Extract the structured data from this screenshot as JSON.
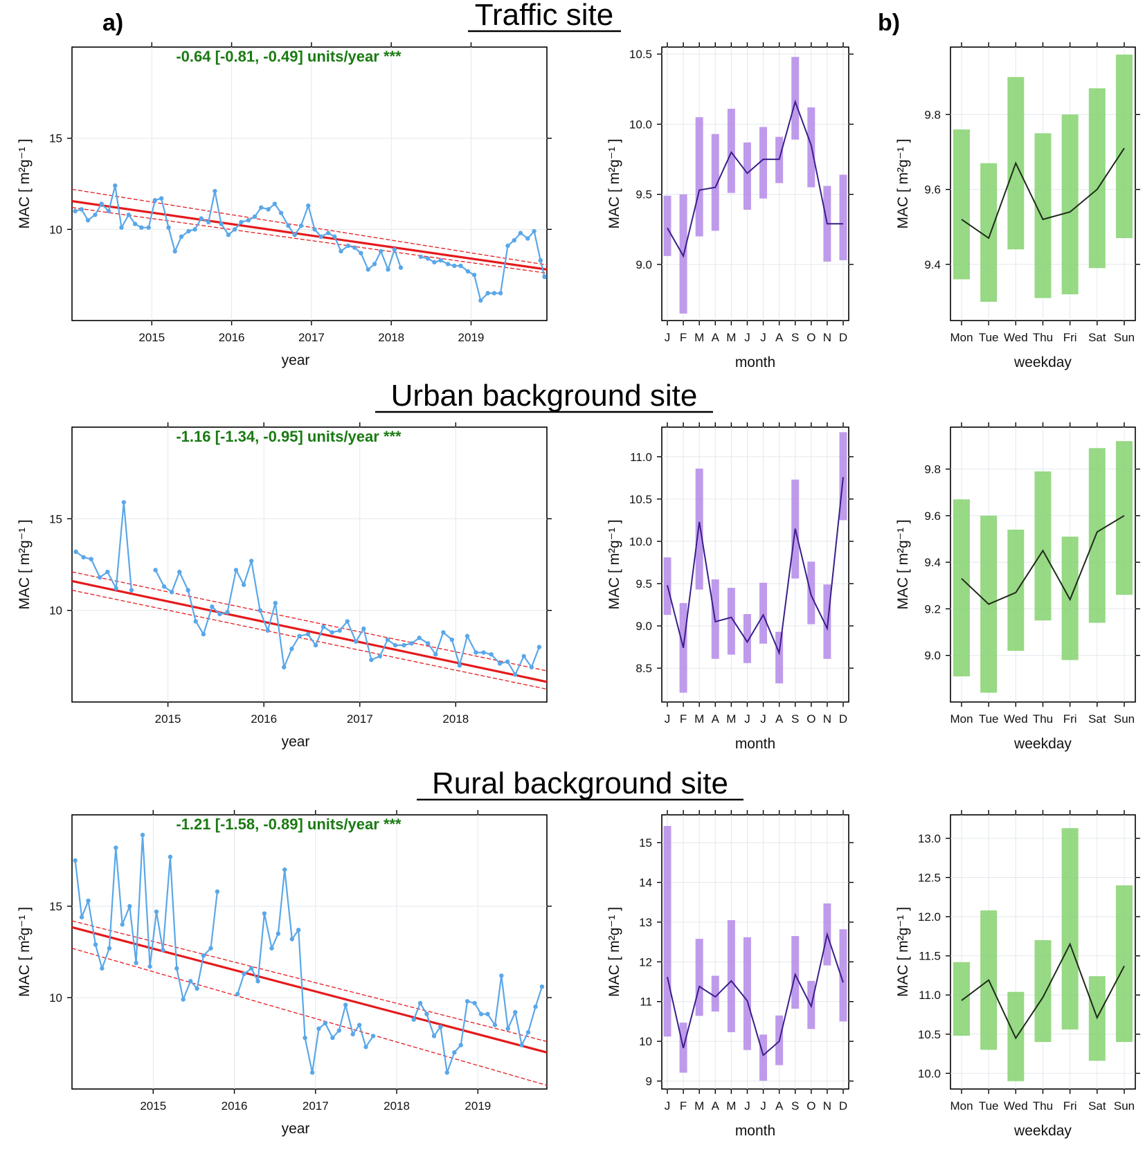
{
  "panel_labels": {
    "a": "a)",
    "b": "b)"
  },
  "site_titles": [
    "Traffic site",
    "Urban background site",
    "Rural background site"
  ],
  "colors": {
    "series": "#5aa7e8",
    "trend": "#e41a1c",
    "month_bar": "#b48ae8",
    "month_line": "#3a1e8a",
    "weekday_bar": "#85d26e",
    "weekday_line": "#1f2a1a",
    "trend_text": "#1a7a12"
  },
  "chart_data": [
    {
      "id": "traffic-year",
      "type": "line",
      "site": "Traffic site",
      "xlabel": "year",
      "ylabel": "MAC [ m²g⁻¹ ]",
      "xlim": [
        2014.0,
        2019.95
      ],
      "ylim": [
        5.0,
        20.0
      ],
      "xticks": [
        2015,
        2016,
        2017,
        2018,
        2019
      ],
      "yticks": [
        10,
        15
      ],
      "annotation": "-0.64 [-0.81, -0.49] units/year ***",
      "segments": [
        {
          "x": [
            2014.04,
            2014.12,
            2014.2,
            2014.29,
            2014.37,
            2014.46,
            2014.54,
            2014.62,
            2014.71,
            2014.79,
            2014.87,
            2014.96,
            2015.04,
            2015.12,
            2015.21,
            2015.29,
            2015.37,
            2015.46,
            2015.54,
            2015.62,
            2015.71,
            2015.79,
            2015.87,
            2015.96,
            2016.04,
            2016.12,
            2016.21,
            2016.29,
            2016.37,
            2016.46,
            2016.54,
            2016.62,
            2016.71,
            2016.79,
            2016.87,
            2016.96,
            2017.04,
            2017.12,
            2017.21,
            2017.29,
            2017.37,
            2017.46,
            2017.54,
            2017.62,
            2017.71,
            2017.79,
            2017.87,
            2017.96,
            2018.04,
            2018.12,
            2018.21
          ],
          "y": [
            11.0,
            11.1,
            10.5,
            10.8,
            11.4,
            11.0,
            12.4,
            10.1,
            10.8,
            10.3,
            10.1,
            10.1,
            11.6,
            11.7,
            10.1,
            8.8,
            9.6,
            9.9,
            10.0,
            10.6,
            10.4,
            12.1,
            10.3,
            9.7,
            10.0,
            10.4,
            10.5,
            10.7,
            11.2,
            11.1,
            11.4,
            10.9,
            10.2,
            9.7,
            10.2,
            11.3,
            10.0,
            9.6,
            9.8,
            9.6,
            8.8,
            9.1,
            9.0,
            8.7,
            7.8,
            8.1,
            8.8,
            7.8,
            8.9,
            7.9,
            null
          ]
        },
        {
          "x": [
            2018.37,
            2018.46,
            2018.54,
            2018.62,
            2018.71,
            2018.79,
            2018.87,
            2018.96,
            2019.04,
            2019.12,
            2019.21,
            2019.29,
            2019.37,
            2019.46,
            2019.54,
            2019.62,
            2019.71,
            2019.79,
            2019.87,
            2019.92
          ],
          "y": [
            8.5,
            8.4,
            8.2,
            8.3,
            8.1,
            8.0,
            8.0,
            7.7,
            7.5,
            6.1,
            6.5,
            6.5,
            6.5,
            9.1,
            9.4,
            9.8,
            9.5,
            9.9,
            8.3,
            7.4
          ]
        }
      ],
      "trend": {
        "x": [
          2014.0,
          2019.95
        ],
        "y": [
          11.55,
          7.8
        ]
      },
      "trend_ci_upper": {
        "x": [
          2014.0,
          2019.95
        ],
        "y": [
          12.2,
          8.05
        ]
      },
      "trend_ci_lower": {
        "x": [
          2014.0,
          2019.95
        ],
        "y": [
          11.2,
          7.6
        ]
      }
    },
    {
      "id": "urban-year",
      "type": "line",
      "site": "Urban background site",
      "xlabel": "year",
      "ylabel": "MAC [ m²g⁻¹ ]",
      "xlim": [
        2014.0,
        2018.95
      ],
      "ylim": [
        5.0,
        20.0
      ],
      "xticks": [
        2015,
        2016,
        2017,
        2018
      ],
      "yticks": [
        10,
        15
      ],
      "annotation": "-1.16 [-1.34, -0.95] units/year ***",
      "segments": [
        {
          "x": [
            2014.04,
            2014.12,
            2014.2,
            2014.29,
            2014.37,
            2014.46,
            2014.54,
            2014.62,
            2014.71,
            2014.79
          ],
          "y": [
            13.2,
            12.9,
            12.8,
            11.8,
            12.1,
            11.2,
            15.9,
            11.1,
            null,
            null
          ]
        },
        {
          "x": [
            2014.87,
            2014.96,
            2015.04,
            2015.12,
            2015.21,
            2015.29,
            2015.37,
            2015.46,
            2015.54,
            2015.62,
            2015.71,
            2015.79,
            2015.87,
            2015.96,
            2016.04,
            2016.12,
            2016.21,
            2016.29,
            2016.37,
            2016.46,
            2016.54,
            2016.62,
            2016.71,
            2016.79,
            2016.87,
            2016.96,
            2017.04,
            2017.12,
            2017.21,
            2017.29,
            2017.37,
            2017.46,
            2017.54,
            2017.62,
            2017.71,
            2017.79,
            2017.87,
            2017.96,
            2018.04,
            2018.12,
            2018.21,
            2018.29,
            2018.37,
            2018.46,
            2018.54,
            2018.62,
            2018.71,
            2018.79,
            2018.87
          ],
          "y": [
            12.2,
            11.3,
            11.0,
            12.1,
            11.1,
            9.4,
            8.7,
            10.2,
            9.8,
            9.9,
            12.2,
            11.4,
            12.7,
            10.0,
            8.9,
            10.4,
            6.9,
            7.9,
            8.6,
            8.7,
            8.1,
            9.1,
            8.8,
            8.9,
            9.4,
            8.3,
            9.0,
            7.3,
            7.5,
            8.4,
            8.1,
            8.1,
            8.2,
            8.5,
            8.2,
            7.6,
            8.8,
            8.4,
            7.0,
            8.6,
            7.7,
            7.7,
            7.6,
            7.1,
            7.2,
            6.5,
            7.5,
            6.9,
            8.0
          ]
        }
      ],
      "trend": {
        "x": [
          2014.0,
          2018.95
        ],
        "y": [
          11.6,
          6.1
        ]
      },
      "trend_ci_upper": {
        "x": [
          2014.0,
          2018.95
        ],
        "y": [
          12.1,
          6.7
        ]
      },
      "trend_ci_lower": {
        "x": [
          2014.0,
          2018.95
        ],
        "y": [
          11.1,
          5.7
        ]
      }
    },
    {
      "id": "rural-year",
      "type": "line",
      "site": "Rural background site",
      "xlabel": "year",
      "ylabel": "MAC [ m²g⁻¹ ]",
      "xlim": [
        2014.0,
        2019.85
      ],
      "ylim": [
        5.0,
        20.0
      ],
      "xticks": [
        2015,
        2016,
        2017,
        2018,
        2019
      ],
      "yticks": [
        10,
        15
      ],
      "annotation": "-1.21 [-1.58, -0.89] units/year ***",
      "segments": [
        {
          "x": [
            2014.04,
            2014.12,
            2014.2,
            2014.29,
            2014.37,
            2014.46,
            2014.54,
            2014.62,
            2014.71,
            2014.79,
            2014.87,
            2014.96,
            2015.04,
            2015.12,
            2015.21,
            2015.29,
            2015.37,
            2015.46,
            2015.54,
            2015.62,
            2015.71,
            2015.79,
            2015.87,
            2015.96
          ],
          "y": [
            17.5,
            14.4,
            15.3,
            12.9,
            11.6,
            12.7,
            18.2,
            14.0,
            15.0,
            11.9,
            18.9,
            11.7,
            14.7,
            12.6,
            17.7,
            11.6,
            9.9,
            10.9,
            10.5,
            12.3,
            12.7,
            15.8,
            null,
            null
          ]
        },
        {
          "x": [
            2016.04,
            2016.12,
            2016.21,
            2016.29,
            2016.37,
            2016.46,
            2016.54,
            2016.62,
            2016.71,
            2016.79,
            2016.87,
            2016.96,
            2017.04,
            2017.12,
            2017.21,
            2017.29,
            2017.37,
            2017.46,
            2017.54,
            2017.62,
            2017.71,
            2017.79
          ],
          "y": [
            10.2,
            11.3,
            11.6,
            10.9,
            14.6,
            12.7,
            13.5,
            17.0,
            13.2,
            13.7,
            7.8,
            5.9,
            8.3,
            8.6,
            7.8,
            8.2,
            9.6,
            8.0,
            8.5,
            7.3,
            7.9,
            null
          ]
        },
        {
          "x": [
            2018.21,
            2018.29,
            2018.37,
            2018.46,
            2018.54,
            2018.62,
            2018.71,
            2018.79,
            2018.87,
            2018.96,
            2019.04,
            2019.12,
            2019.21,
            2019.29,
            2019.37,
            2019.46,
            2019.54,
            2019.62,
            2019.71,
            2019.79
          ],
          "y": [
            8.8,
            9.7,
            9.1,
            7.9,
            8.4,
            5.9,
            7.0,
            7.4,
            9.8,
            9.7,
            9.1,
            9.1,
            8.5,
            11.2,
            8.3,
            9.2,
            7.4,
            8.1,
            9.5,
            10.6
          ]
        }
      ],
      "trend": {
        "x": [
          2014.0,
          2019.85
        ],
        "y": [
          13.85,
          7.0
        ]
      },
      "trend_ci_upper": {
        "x": [
          2014.0,
          2019.85
        ],
        "y": [
          14.2,
          7.6
        ]
      },
      "trend_ci_lower": {
        "x": [
          2014.0,
          2019.85
        ],
        "y": [
          12.7,
          5.2
        ]
      }
    },
    {
      "id": "traffic-month",
      "type": "bar",
      "site": "Traffic site",
      "xlabel": "month",
      "ylabel": "MAC [ m²g⁻¹ ]",
      "categories": [
        "J",
        "F",
        "M",
        "A",
        "M",
        "J",
        "J",
        "A",
        "S",
        "O",
        "N",
        "D"
      ],
      "ylim": [
        8.6,
        10.55
      ],
      "yticks": [
        "9.0",
        "9.5",
        "10.0",
        "10.5"
      ],
      "mean": [
        9.26,
        9.06,
        9.53,
        9.55,
        9.8,
        9.65,
        9.75,
        9.75,
        10.16,
        9.85,
        9.29,
        9.29
      ],
      "lower": [
        9.06,
        8.65,
        9.2,
        9.24,
        9.51,
        9.39,
        9.47,
        9.58,
        9.89,
        9.55,
        9.02,
        9.03
      ],
      "upper": [
        9.49,
        9.5,
        10.05,
        9.93,
        10.11,
        9.87,
        9.98,
        9.91,
        10.48,
        10.12,
        9.56,
        9.64
      ]
    },
    {
      "id": "urban-month",
      "type": "bar",
      "site": "Urban background site",
      "xlabel": "month",
      "ylabel": "MAC [ m²g⁻¹ ]",
      "categories": [
        "J",
        "F",
        "M",
        "A",
        "M",
        "J",
        "J",
        "A",
        "S",
        "O",
        "N",
        "D"
      ],
      "ylim": [
        8.1,
        11.35
      ],
      "yticks": [
        "8.5",
        "9.0",
        "9.5",
        "10.0",
        "10.5",
        "11.0"
      ],
      "mean": [
        9.48,
        8.74,
        10.23,
        9.05,
        9.1,
        8.81,
        9.13,
        8.68,
        10.15,
        9.36,
        8.97,
        10.76
      ],
      "lower": [
        9.13,
        8.21,
        9.43,
        8.61,
        8.66,
        8.56,
        8.79,
        8.32,
        9.56,
        9.02,
        8.61,
        10.25
      ],
      "upper": [
        9.81,
        9.27,
        10.86,
        9.55,
        9.45,
        9.14,
        9.51,
        8.93,
        10.73,
        9.76,
        9.49,
        11.29
      ]
    },
    {
      "id": "rural-month",
      "type": "bar",
      "site": "Rural background site",
      "xlabel": "month",
      "ylabel": "MAC [ m²g⁻¹ ]",
      "categories": [
        "J",
        "F",
        "M",
        "A",
        "M",
        "J",
        "J",
        "A",
        "S",
        "O",
        "N",
        "D"
      ],
      "ylim": [
        8.8,
        15.7
      ],
      "yticks": [
        "9",
        "10",
        "11",
        "12",
        "13",
        "14",
        "15"
      ],
      "mean": [
        11.62,
        9.83,
        11.38,
        11.12,
        11.52,
        11.02,
        9.65,
        10.0,
        11.68,
        10.88,
        12.69,
        11.48
      ],
      "lower": [
        10.12,
        9.21,
        10.64,
        10.75,
        10.23,
        9.78,
        9.01,
        9.4,
        10.82,
        10.31,
        11.91,
        10.5
      ],
      "upper": [
        15.42,
        10.47,
        12.58,
        11.65,
        13.05,
        12.62,
        10.17,
        10.65,
        12.65,
        11.52,
        13.47,
        12.82
      ]
    },
    {
      "id": "traffic-weekday",
      "type": "bar",
      "site": "Traffic site",
      "xlabel": "weekday",
      "ylabel": "MAC [ m²g⁻¹ ]",
      "categories": [
        "Mon",
        "Tue",
        "Wed",
        "Thu",
        "Fri",
        "Sat",
        "Sun"
      ],
      "ylim": [
        9.25,
        9.98
      ],
      "yticks": [
        "9.4",
        "9.6",
        "9.8"
      ],
      "mean": [
        9.52,
        9.47,
        9.67,
        9.52,
        9.54,
        9.6,
        9.71
      ],
      "lower": [
        9.36,
        9.3,
        9.44,
        9.31,
        9.32,
        9.39,
        9.47
      ],
      "upper": [
        9.76,
        9.67,
        9.9,
        9.75,
        9.8,
        9.87,
        9.96
      ]
    },
    {
      "id": "urban-weekday",
      "type": "bar",
      "site": "Urban background site",
      "xlabel": "weekday",
      "ylabel": "MAC [ m²g⁻¹ ]",
      "categories": [
        "Mon",
        "Tue",
        "Wed",
        "Thu",
        "Fri",
        "Sat",
        "Sun"
      ],
      "ylim": [
        8.8,
        9.98
      ],
      "yticks": [
        "9.0",
        "9.2",
        "9.4",
        "9.6",
        "9.8"
      ],
      "mean": [
        9.33,
        9.22,
        9.27,
        9.45,
        9.24,
        9.53,
        9.6
      ],
      "lower": [
        8.91,
        8.84,
        9.02,
        9.15,
        8.98,
        9.14,
        9.26
      ],
      "upper": [
        9.67,
        9.6,
        9.54,
        9.79,
        9.51,
        9.89,
        9.92
      ]
    },
    {
      "id": "rural-weekday",
      "type": "bar",
      "site": "Rural background site",
      "xlabel": "weekday",
      "ylabel": "MAC [ m²g⁻¹ ]",
      "categories": [
        "Mon",
        "Tue",
        "Wed",
        "Thu",
        "Fri",
        "Sat",
        "Sun"
      ],
      "ylim": [
        9.8,
        13.3
      ],
      "yticks": [
        "10.0",
        "10.5",
        "11.0",
        "11.5",
        "12.0",
        "12.5",
        "13.0"
      ],
      "mean": [
        10.93,
        11.19,
        10.45,
        10.97,
        11.65,
        10.71,
        11.37
      ],
      "lower": [
        10.48,
        10.3,
        9.9,
        10.4,
        10.56,
        10.16,
        10.4
      ],
      "upper": [
        11.42,
        12.08,
        11.04,
        11.7,
        13.13,
        11.24,
        12.4
      ]
    }
  ]
}
